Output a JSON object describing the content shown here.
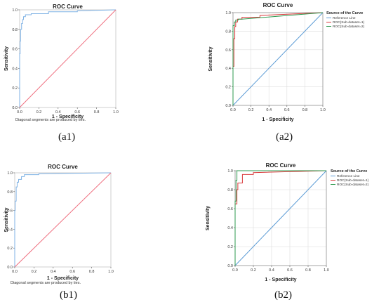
{
  "captions": [
    "(a1)",
    "(a2)",
    "(b1)",
    "(b2)"
  ],
  "colors": {
    "roc_blue": "#7fb2e5",
    "ref_red": "#ef6f7f",
    "ref_blue": "#5b9bd5",
    "sub1_red": "#d9383a",
    "sub2_green": "#2e9a4f",
    "grid": "#dddddd"
  },
  "chart_data": [
    {
      "type": "line",
      "title": "ROC Curve",
      "xlabel": "1 - Specificity",
      "ylabel": "Sensitivity",
      "xlim": [
        0,
        1
      ],
      "ylim": [
        0,
        1
      ],
      "ticks": [
        "0.0",
        "0.2",
        "0.4",
        "0.6",
        "0.8",
        "1.0"
      ],
      "grid": false,
      "note": "Diagonal segments are produced by ties.",
      "legend": null,
      "series": [
        {
          "role": "roc",
          "color": "#7fb2e5",
          "x": [
            0,
            0,
            0.005,
            0.005,
            0.01,
            0.01,
            0.02,
            0.02,
            0.03,
            0.03,
            0.04,
            0.04,
            0.06,
            0.06,
            0.12,
            0.12,
            0.3,
            0.3,
            0.6,
            0.6,
            1.0
          ],
          "y": [
            0,
            0.55,
            0.55,
            0.68,
            0.68,
            0.8,
            0.8,
            0.86,
            0.86,
            0.9,
            0.9,
            0.93,
            0.93,
            0.95,
            0.95,
            0.96,
            0.96,
            0.98,
            0.98,
            0.99,
            1.0
          ]
        },
        {
          "role": "reference",
          "color": "#ef6f7f",
          "x": [
            0,
            1
          ],
          "y": [
            0,
            1
          ]
        }
      ]
    },
    {
      "type": "line",
      "title": "ROC Curve",
      "xlabel": "1 - Specificity",
      "ylabel": "Sensitivity",
      "xlim": [
        0,
        1
      ],
      "ylim": [
        0,
        1
      ],
      "ticks": [
        "0.0",
        "0.2",
        "0.4",
        "0.6",
        "0.8",
        "1.0"
      ],
      "grid": true,
      "note": "",
      "legend": {
        "title": "Source of the Curve",
        "placement": "right",
        "entries": [
          "Reference Line",
          "ROC(Sub-dataset=1)",
          "ROC(Sub-dataset=2)"
        ]
      },
      "series": [
        {
          "name": "Reference Line",
          "color": "#5b9bd5",
          "x": [
            0,
            1
          ],
          "y": [
            0,
            1
          ]
        },
        {
          "name": "ROC(Sub-dataset=1)",
          "color": "#d9383a",
          "x": [
            0,
            0,
            0.01,
            0.01,
            0.02,
            0.02,
            0.03,
            0.03,
            0.05,
            0.05,
            0.1,
            0.1,
            0.3,
            0.3,
            1.0
          ],
          "y": [
            0,
            0.42,
            0.42,
            0.72,
            0.72,
            0.85,
            0.85,
            0.9,
            0.9,
            0.93,
            0.93,
            0.95,
            0.95,
            0.97,
            1.0
          ]
        },
        {
          "name": "ROC(Sub-dataset=2)",
          "color": "#2e9a4f",
          "x": [
            0,
            0,
            0.015,
            0.015,
            0.03,
            0.03,
            0.06,
            0.06,
            0.1,
            1.0
          ],
          "y": [
            0,
            0.86,
            0.86,
            0.9,
            0.9,
            0.92,
            0.92,
            0.93,
            0.93,
            1.0
          ]
        }
      ]
    },
    {
      "type": "line",
      "title": "ROC Curve",
      "xlabel": "1 - Specificity",
      "ylabel": "Sensitivity",
      "xlim": [
        0,
        1
      ],
      "ylim": [
        0,
        1
      ],
      "ticks": [
        "0.0",
        "0.2",
        "0.4",
        "0.6",
        "0.8",
        "1.0"
      ],
      "grid": false,
      "note": "Diagonal segments are produced by ties.",
      "legend": null,
      "series": [
        {
          "role": "roc",
          "color": "#7fb2e5",
          "x": [
            0,
            0,
            0.005,
            0.005,
            0.015,
            0.015,
            0.025,
            0.025,
            0.04,
            0.04,
            0.07,
            0.07,
            0.1,
            0.1,
            0.25,
            0.25,
            1.0
          ],
          "y": [
            0,
            0.6,
            0.6,
            0.7,
            0.7,
            0.85,
            0.85,
            0.9,
            0.9,
            0.93,
            0.93,
            0.96,
            0.96,
            0.98,
            0.98,
            0.99,
            1.0
          ]
        },
        {
          "role": "reference",
          "color": "#ef6f7f",
          "x": [
            0,
            1
          ],
          "y": [
            0,
            1
          ]
        }
      ]
    },
    {
      "type": "line",
      "title": "ROC Curve",
      "xlabel": "1 - Specificity",
      "ylabel": "Sensitivity",
      "xlim": [
        0,
        1
      ],
      "ylim": [
        0,
        1
      ],
      "ticks": [
        "0.0",
        "0.2",
        "0.4",
        "0.6",
        "0.8",
        "1.0"
      ],
      "grid": true,
      "note": "",
      "legend": {
        "title": "Source of the Curve",
        "placement": "right",
        "entries": [
          "Reference Line",
          "ROC(Sub-dataset=1)",
          "ROC(Sub-dataset=2)"
        ]
      },
      "series": [
        {
          "name": "Reference Line",
          "color": "#5b9bd5",
          "x": [
            0,
            1
          ],
          "y": [
            0,
            1
          ]
        },
        {
          "name": "ROC(Sub-dataset=1)",
          "color": "#d9383a",
          "x": [
            0,
            0,
            0.02,
            0.02,
            0.03,
            0.03,
            0.08,
            0.08,
            0.2,
            0.2,
            1.0
          ],
          "y": [
            0,
            0.65,
            0.65,
            0.8,
            0.8,
            0.87,
            0.87,
            0.96,
            0.96,
            0.98,
            1.0
          ]
        },
        {
          "name": "ROC(Sub-dataset=2)",
          "color": "#2e9a4f",
          "x": [
            0,
            0,
            0.01,
            0.01,
            0.02,
            0.02,
            1.0
          ],
          "y": [
            0,
            0.68,
            0.68,
            0.9,
            0.9,
            1.0,
            1.0
          ]
        }
      ]
    }
  ]
}
